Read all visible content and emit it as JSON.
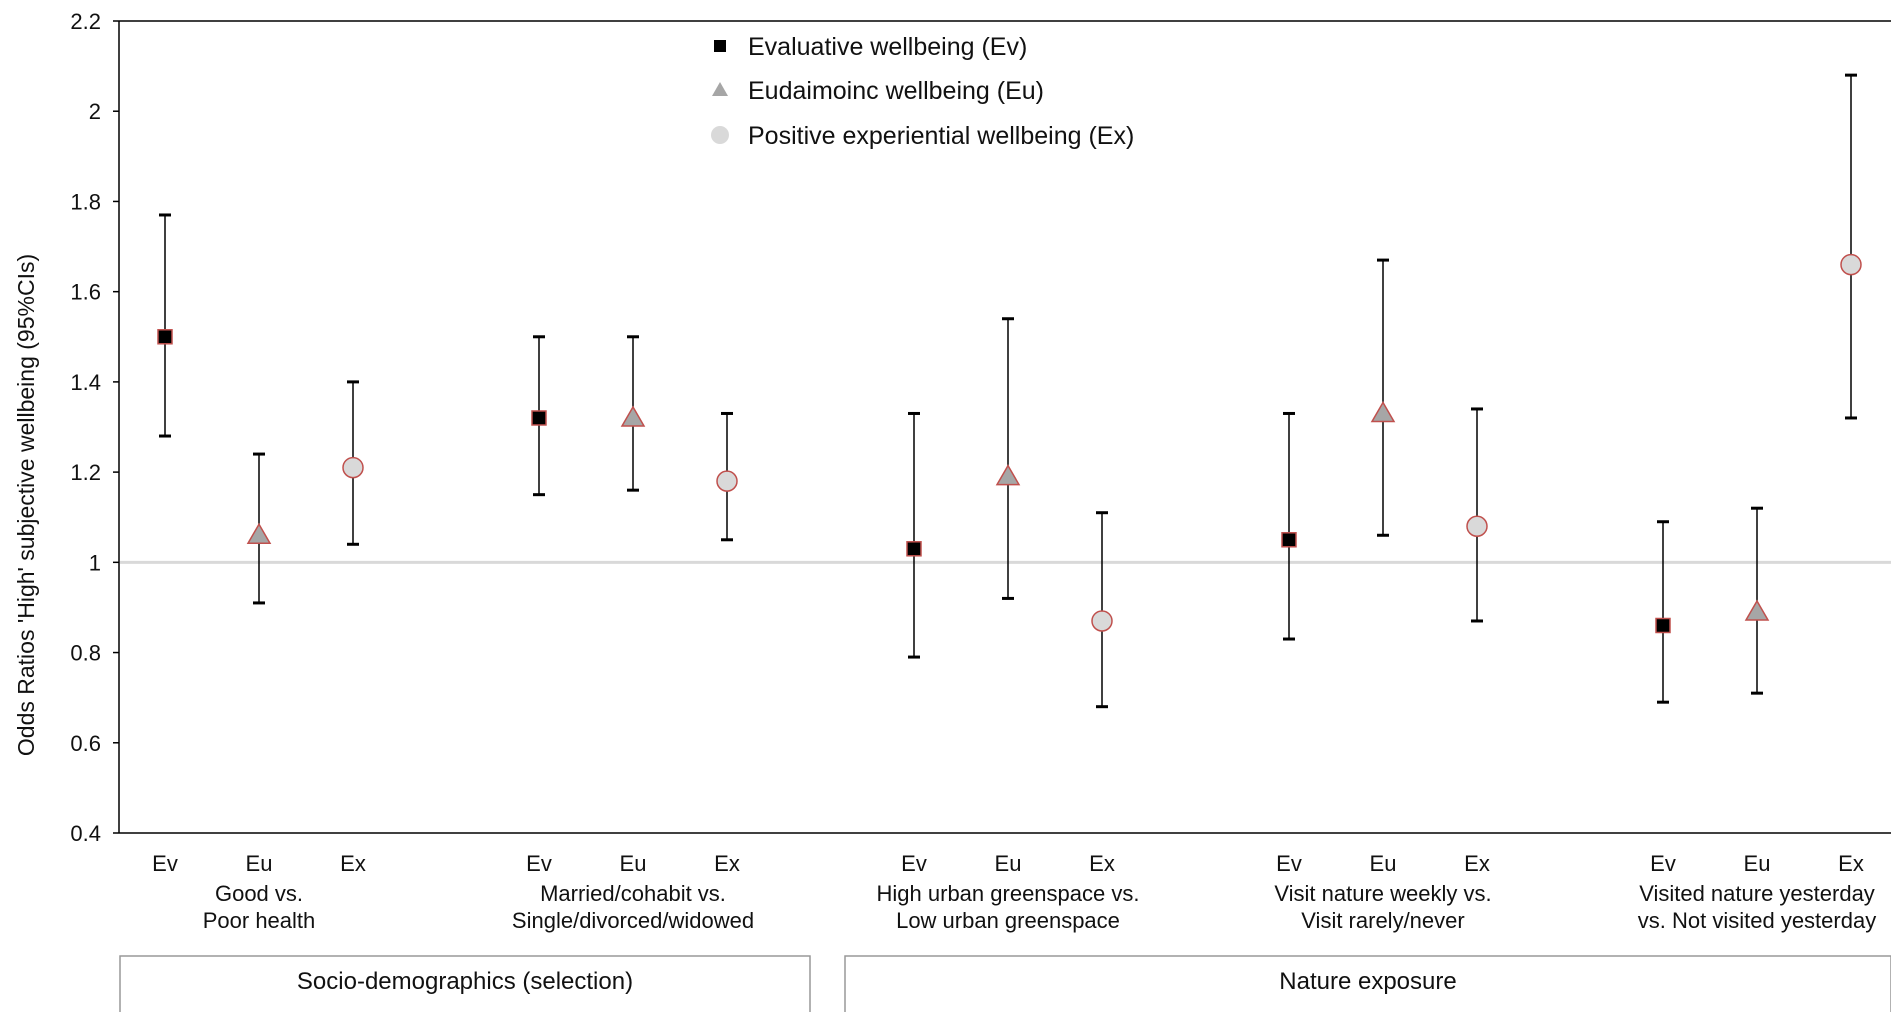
{
  "chart_data": {
    "type": "scatter",
    "ylabel": "Odds Ratios 'High' subjective wellbeing (95%CIs)",
    "ylim": [
      0.4,
      2.2
    ],
    "yticks": [
      "0.4",
      "0.6",
      "0.8",
      "1",
      "1.2",
      "1.4",
      "1.6",
      "1.8",
      "2",
      "2.2"
    ],
    "reference_line": 1,
    "legend_position": "top-center",
    "series": [
      {
        "key": "Ev",
        "name": "Evaluative wellbeing (Ev)",
        "marker": "square",
        "fill": "#000000",
        "stroke": "#c0504d"
      },
      {
        "key": "Eu",
        "name": "Eudaimoinc wellbeing (Eu)",
        "marker": "triangle",
        "fill": "#a6a6a6",
        "stroke": "#c0504d"
      },
      {
        "key": "Ex",
        "name": "Positive experiential wellbeing (Ex)",
        "marker": "circle",
        "fill": "#d9d9d9",
        "stroke": "#c0504d"
      }
    ],
    "groups": [
      {
        "label_line1": "Good vs.",
        "label_line2": "Poor health",
        "points": [
          {
            "series": "Ev",
            "label": "Ev",
            "or": 1.5,
            "lo": 1.28,
            "hi": 1.77
          },
          {
            "series": "Eu",
            "label": "Eu",
            "or": 1.06,
            "lo": 0.91,
            "hi": 1.24
          },
          {
            "series": "Ex",
            "label": "Ex",
            "or": 1.21,
            "lo": 1.04,
            "hi": 1.4
          }
        ]
      },
      {
        "label_line1": "Married/cohabit vs.",
        "label_line2": "Single/divorced/widowed",
        "points": [
          {
            "series": "Ev",
            "label": "Ev",
            "or": 1.32,
            "lo": 1.15,
            "hi": 1.5
          },
          {
            "series": "Eu",
            "label": "Eu",
            "or": 1.32,
            "lo": 1.16,
            "hi": 1.5
          },
          {
            "series": "Ex",
            "label": "Ex",
            "or": 1.18,
            "lo": 1.05,
            "hi": 1.33
          }
        ]
      },
      {
        "label_line1": "High urban greenspace vs.",
        "label_line2": "Low urban greenspace",
        "points": [
          {
            "series": "Ev",
            "label": "Ev",
            "or": 1.03,
            "lo": 0.79,
            "hi": 1.33
          },
          {
            "series": "Eu",
            "label": "Eu",
            "or": 1.19,
            "lo": 0.92,
            "hi": 1.54
          },
          {
            "series": "Ex",
            "label": "Ex",
            "or": 0.87,
            "lo": 0.68,
            "hi": 1.11
          }
        ]
      },
      {
        "label_line1": "Visit nature weekly vs.",
        "label_line2": "Visit rarely/never",
        "points": [
          {
            "series": "Ev",
            "label": "Ev",
            "or": 1.05,
            "lo": 0.83,
            "hi": 1.33
          },
          {
            "series": "Eu",
            "label": "Eu",
            "or": 1.33,
            "lo": 1.06,
            "hi": 1.67
          },
          {
            "series": "Ex",
            "label": "Ex",
            "or": 1.08,
            "lo": 0.87,
            "hi": 1.34
          }
        ]
      },
      {
        "label_line1": "Visited nature yesterday",
        "label_line2": "vs. Not visited yesterday",
        "points": [
          {
            "series": "Ev",
            "label": "Ev",
            "or": 0.86,
            "lo": 0.69,
            "hi": 1.09
          },
          {
            "series": "Eu",
            "label": "Eu",
            "or": 0.89,
            "lo": 0.71,
            "hi": 1.12
          },
          {
            "series": "Ex",
            "label": "Ex",
            "or": 1.66,
            "lo": 1.32,
            "hi": 2.08
          }
        ]
      }
    ],
    "sections": [
      {
        "label": "Socio-demographics (selection)",
        "groups": [
          0,
          1
        ]
      },
      {
        "label": "Nature exposure",
        "groups": [
          2,
          3,
          4
        ]
      }
    ]
  }
}
